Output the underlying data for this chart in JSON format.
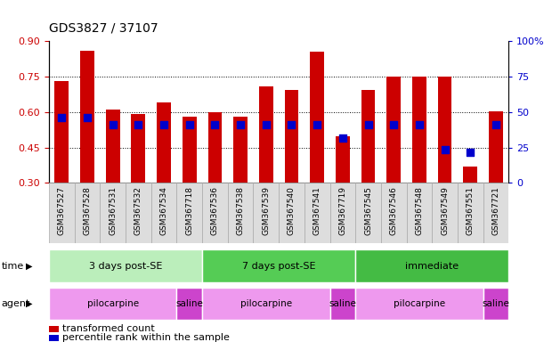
{
  "title": "GDS3827 / 37107",
  "samples": [
    "GSM367527",
    "GSM367528",
    "GSM367531",
    "GSM367532",
    "GSM367534",
    "GSM367718",
    "GSM367536",
    "GSM367538",
    "GSM367539",
    "GSM367540",
    "GSM367541",
    "GSM367719",
    "GSM367545",
    "GSM367546",
    "GSM367548",
    "GSM367549",
    "GSM367551",
    "GSM367721"
  ],
  "bar_tops": [
    0.73,
    0.86,
    0.612,
    0.592,
    0.642,
    0.58,
    0.598,
    0.58,
    0.71,
    0.692,
    0.855,
    0.497,
    0.692,
    0.748,
    0.748,
    0.748,
    0.368,
    0.603
  ],
  "blue_y": [
    0.578,
    0.578,
    0.545,
    0.545,
    0.548,
    0.545,
    0.548,
    0.548,
    0.548,
    0.548,
    0.548,
    0.49,
    0.548,
    0.548,
    0.548,
    0.44,
    0.43,
    0.548
  ],
  "bar_bottom": 0.3,
  "ylim_left": [
    0.3,
    0.9
  ],
  "yticks_left": [
    0.3,
    0.45,
    0.6,
    0.75,
    0.9
  ],
  "yticks_right_vals": [
    0,
    25,
    50,
    75,
    100
  ],
  "yticks_right_labels": [
    "0",
    "25",
    "50",
    "75",
    "100%"
  ],
  "bar_color": "#cc0000",
  "blue_color": "#0000cc",
  "time_groups": [
    {
      "label": "3 days post-SE",
      "start": 0,
      "end": 6,
      "color": "#bbeebb"
    },
    {
      "label": "7 days post-SE",
      "start": 6,
      "end": 12,
      "color": "#55cc55"
    },
    {
      "label": "immediate",
      "start": 12,
      "end": 18,
      "color": "#44bb44"
    }
  ],
  "agent_groups": [
    {
      "label": "pilocarpine",
      "start": 0,
      "end": 5,
      "color": "#ee99ee"
    },
    {
      "label": "saline",
      "start": 5,
      "end": 6,
      "color": "#cc44cc"
    },
    {
      "label": "pilocarpine",
      "start": 6,
      "end": 11,
      "color": "#ee99ee"
    },
    {
      "label": "saline",
      "start": 11,
      "end": 12,
      "color": "#cc44cc"
    },
    {
      "label": "pilocarpine",
      "start": 12,
      "end": 17,
      "color": "#ee99ee"
    },
    {
      "label": "saline",
      "start": 17,
      "end": 18,
      "color": "#cc44cc"
    }
  ],
  "legend_red_label": "transformed count",
  "legend_blue_label": "percentile rank within the sample",
  "left_tick_color": "#cc0000",
  "right_tick_color": "#0000cc",
  "bar_width": 0.55,
  "blue_size": 28,
  "sample_cell_color": "#dddddd",
  "sample_cell_edge": "#aaaaaa"
}
